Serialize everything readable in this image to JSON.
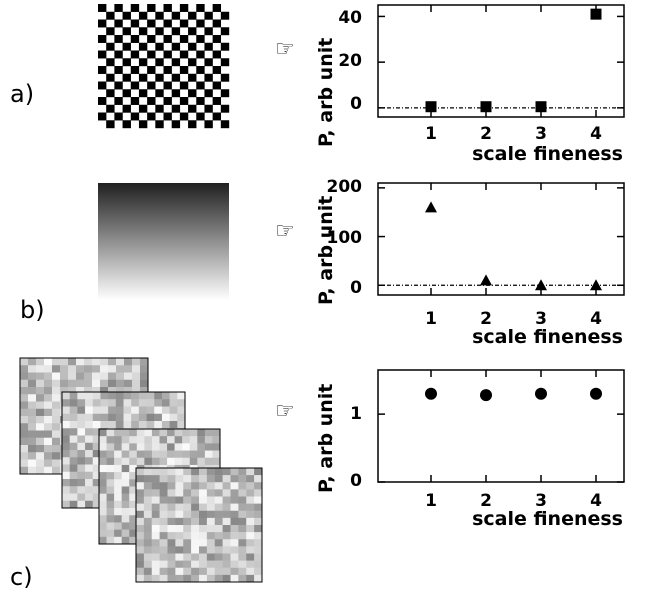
{
  "panels": [
    {
      "label": "a)",
      "pointer_icon": "pointing-hand-icon",
      "image": "checkerboard"
    },
    {
      "label": "b)",
      "pointer_icon": "pointing-hand-icon",
      "image": "vertical-gradient"
    },
    {
      "label": "c)",
      "pointer_icon": "pointing-hand-icon",
      "image": "stacked-random-noise"
    }
  ],
  "pointer_glyph": "☞",
  "chart_data": [
    {
      "type": "scatter",
      "marker": "square",
      "x": [
        1,
        2,
        3,
        4
      ],
      "y": [
        0.5,
        0.5,
        0.5,
        41
      ],
      "xlabel": "scale fineness",
      "ylabel": "P, arb unit",
      "xticks": [
        "1",
        "2",
        "3",
        "4"
      ],
      "yticks": [
        "0",
        "20",
        "40"
      ],
      "ylim": [
        -4,
        45
      ],
      "reference_line": 0
    },
    {
      "type": "scatter",
      "marker": "triangle",
      "x": [
        1,
        2,
        3,
        4
      ],
      "y": [
        160,
        10,
        0,
        0
      ],
      "xlabel": "scale fineness",
      "ylabel": "P, arb unit",
      "xticks": [
        "1",
        "2",
        "3",
        "4"
      ],
      "yticks": [
        "0",
        "100",
        "200"
      ],
      "ylim": [
        -20,
        210
      ],
      "reference_line": 0
    },
    {
      "type": "scatter",
      "marker": "circle",
      "x": [
        1,
        2,
        3,
        4
      ],
      "y": [
        1.3,
        1.28,
        1.3,
        1.3
      ],
      "xlabel": "scale fineness",
      "ylabel": "P, arb unit",
      "xticks": [
        "1",
        "2",
        "3",
        "4"
      ],
      "yticks": [
        "0",
        "1"
      ],
      "ylim": [
        0,
        1.65
      ]
    }
  ]
}
